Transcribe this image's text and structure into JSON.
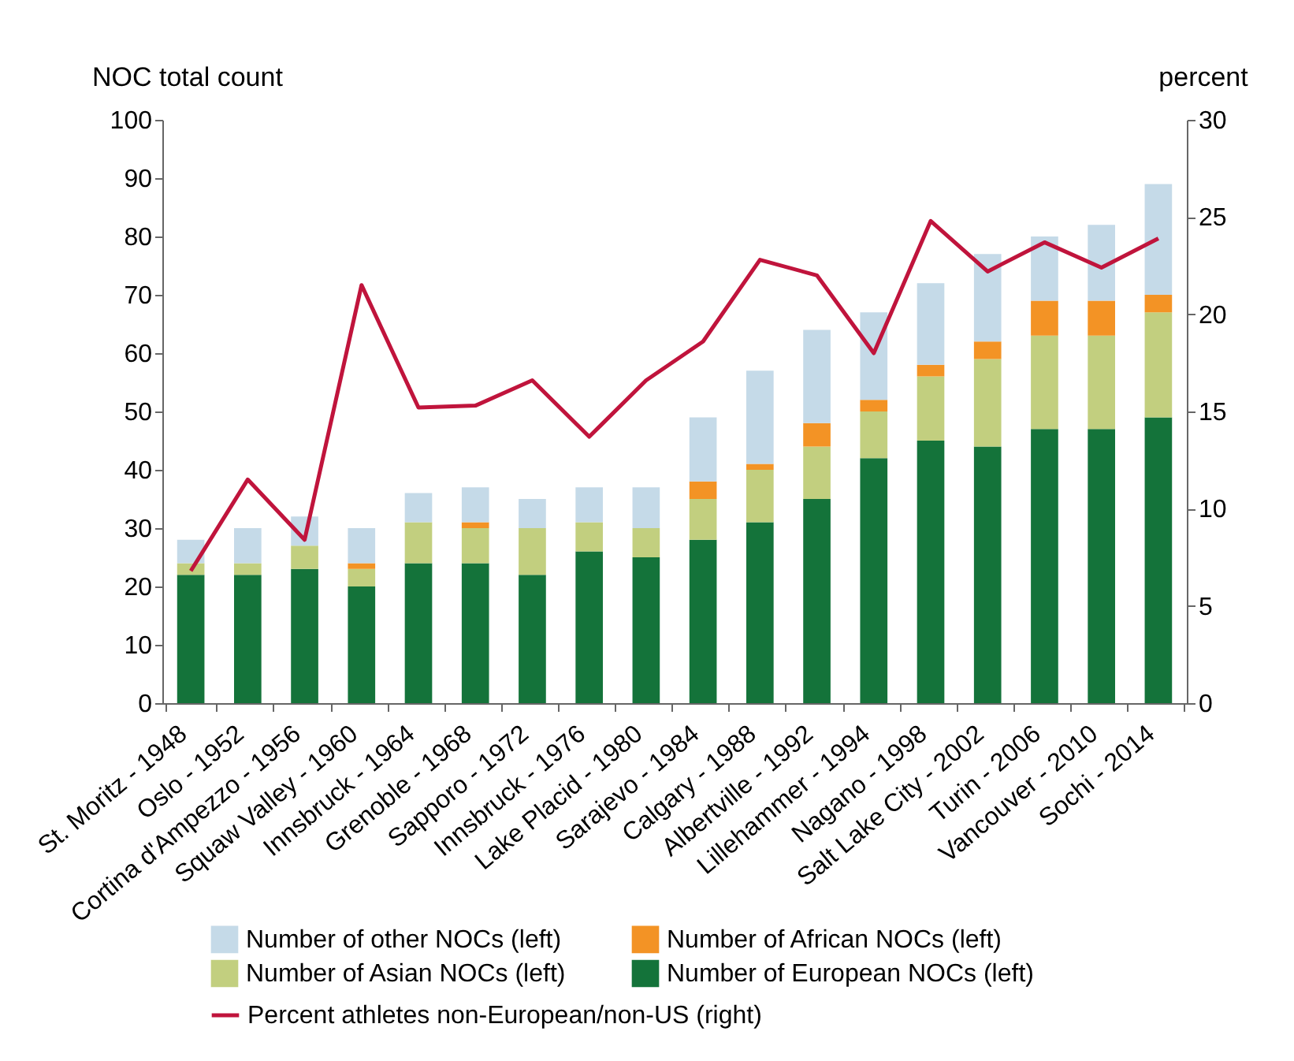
{
  "chart_data": {
    "type": "bar",
    "stacked": true,
    "categories": [
      "St. Moritz - 1948",
      "Oslo - 1952",
      "Cortina d'Ampezzo - 1956",
      "Squaw Valley - 1960",
      "Innsbruck - 1964",
      "Grenoble - 1968",
      "Sapporo - 1972",
      "Innsbruck - 1976",
      "Lake Placid - 1980",
      "Sarajevo - 1984",
      "Calgary - 1988",
      "Albertville - 1992",
      "Lillehammer - 1994",
      "Nagano - 1998",
      "Salt Lake City - 2002",
      "Turin - 2006",
      "Vancouver - 2010",
      "Sochi - 2014"
    ],
    "ylabel": "NOC total count",
    "y2label": "percent",
    "ylim": [
      0,
      100
    ],
    "yticks": [
      0,
      10,
      20,
      30,
      40,
      50,
      60,
      70,
      80,
      90,
      100
    ],
    "y2lim": [
      0,
      30
    ],
    "y2ticks": [
      0,
      5,
      10,
      15,
      20,
      25,
      30
    ],
    "grid": false,
    "legend": "bottom",
    "marker": "none",
    "line_style": "solid",
    "series": [
      {
        "name": "Number of European NOCs (left)",
        "color": "#14733a",
        "values": [
          22,
          22,
          23,
          20,
          24,
          24,
          22,
          26,
          25,
          28,
          31,
          35,
          42,
          45,
          44,
          47,
          47,
          49
        ]
      },
      {
        "name": "Number of Asian NOCs (left)",
        "color": "#c2cf7f",
        "values": [
          2,
          2,
          4,
          3,
          7,
          6,
          8,
          5,
          5,
          7,
          9,
          9,
          8,
          11,
          15,
          16,
          16,
          18
        ]
      },
      {
        "name": "Number of African NOCs (left)",
        "color": "#f39325",
        "values": [
          0,
          0,
          0,
          1,
          0,
          1,
          0,
          0,
          0,
          3,
          1,
          4,
          2,
          2,
          3,
          6,
          6,
          3
        ]
      },
      {
        "name": "Number of other NOCs (left)",
        "color": "#c5dae8",
        "values": [
          4,
          6,
          5,
          6,
          5,
          6,
          5,
          6,
          7,
          11,
          16,
          16,
          15,
          14,
          15,
          11,
          13,
          19
        ]
      },
      {
        "name": "Percent athletes non-European/non-US (right)",
        "type": "line",
        "axis": "y2",
        "color": "#c0143c",
        "values": [
          6.8,
          11.5,
          8.4,
          21.5,
          15.2,
          15.3,
          16.6,
          13.7,
          16.6,
          18.6,
          22.8,
          22.0,
          18.0,
          24.8,
          22.2,
          23.7,
          22.4,
          23.9
        ]
      }
    ]
  }
}
